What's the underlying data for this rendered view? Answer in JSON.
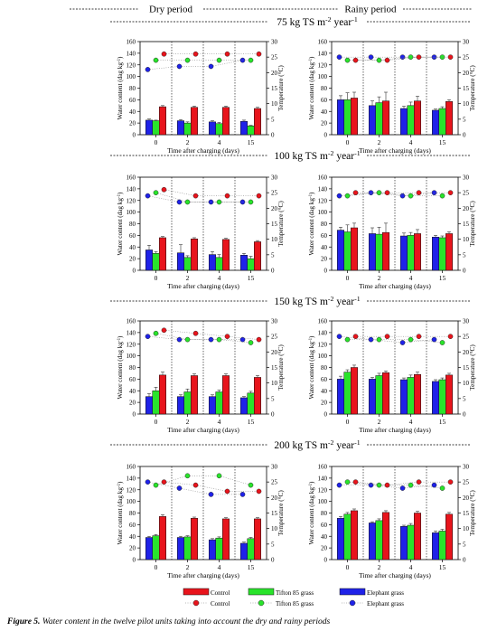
{
  "headers": {
    "dry": "Dry period",
    "rainy": "Rainy period"
  },
  "rows": [
    {
      "title": "75 kg TS m",
      "sup1": "-2",
      "mid": " year",
      "sup2": "-1"
    },
    {
      "title": "100 kg TS m",
      "sup1": "-2",
      "mid": " year",
      "sup2": "-1"
    },
    {
      "title": "150 kg TS m",
      "sup1": "-2",
      "mid": " year",
      "sup2": "-1"
    },
    {
      "title": "200 kg TS m",
      "sup1": "-2",
      "mid": " year",
      "sup2": "-1"
    }
  ],
  "axis_text": {
    "ylabel_left": "Water content (dag kg",
    "ylabel_left_sup": "-1",
    "ylabel_left_end": ")",
    "ylabel_right": "Temperature (°C)",
    "xlabel": "Time after charging (days)"
  },
  "legend": {
    "bars": [
      "Control",
      "Tifton 85 grass",
      "Elephant grass"
    ],
    "points": [
      "Control",
      "Tifton 85 grass",
      "Elephant grass"
    ]
  },
  "caption": {
    "label": "Figure 5.",
    "text": " Water content in the twelve pilot units taking into account the dry and rainy periods"
  },
  "colors": {
    "control": "#e8141c",
    "tifton": "#29e32b",
    "elephant": "#1f22e8"
  },
  "chart_data": [
    {
      "type": "bar",
      "panel": "dry-75",
      "categories": [
        "0",
        "2",
        "4",
        "15"
      ],
      "ylim": [
        0,
        160
      ],
      "y2lim": [
        0,
        30
      ],
      "series": [
        {
          "name": "Elephant grass",
          "values": [
            25,
            24,
            22,
            23
          ]
        },
        {
          "name": "Tifton 85 grass",
          "values": [
            24,
            20,
            19,
            15
          ]
        },
        {
          "name": "Control",
          "values": [
            48,
            47,
            47,
            45
          ]
        }
      ],
      "errors": [
        [
          2,
          2,
          2,
          2
        ],
        [
          1,
          2,
          2,
          1
        ],
        [
          2,
          2,
          2,
          2
        ]
      ],
      "temperature": [
        {
          "name": "Elephant grass",
          "values": [
            21,
            22,
            22,
            24
          ]
        },
        {
          "name": "Tifton 85 grass",
          "values": [
            24,
            24,
            24,
            24
          ]
        },
        {
          "name": "Control",
          "values": [
            26,
            26,
            26,
            26
          ]
        }
      ]
    },
    {
      "type": "bar",
      "panel": "rainy-75",
      "categories": [
        "0",
        "2",
        "4",
        "15"
      ],
      "ylim": [
        0,
        160
      ],
      "y2lim": [
        0,
        30
      ],
      "series": [
        {
          "name": "Elephant grass",
          "values": [
            60,
            50,
            45,
            42
          ]
        },
        {
          "name": "Tifton 85 grass",
          "values": [
            60,
            55,
            50,
            45
          ]
        },
        {
          "name": "Control",
          "values": [
            63,
            58,
            58,
            57
          ]
        }
      ],
      "errors": [
        [
          7,
          8,
          4,
          2
        ],
        [
          12,
          10,
          6,
          3
        ],
        [
          10,
          15,
          8,
          3
        ]
      ],
      "temperature": [
        {
          "name": "Elephant grass",
          "values": [
            25,
            25,
            25,
            25
          ]
        },
        {
          "name": "Tifton 85 grass",
          "values": [
            24,
            24,
            25,
            25
          ]
        },
        {
          "name": "Control",
          "values": [
            24,
            24,
            25,
            25
          ]
        }
      ]
    },
    {
      "type": "bar",
      "panel": "dry-100",
      "categories": [
        "0",
        "2",
        "4",
        "15"
      ],
      "ylim": [
        0,
        160
      ],
      "y2lim": [
        0,
        30
      ],
      "series": [
        {
          "name": "Elephant grass",
          "values": [
            35,
            30,
            27,
            26
          ]
        },
        {
          "name": "Tifton 85 grass",
          "values": [
            29,
            22,
            22,
            20
          ]
        },
        {
          "name": "Control",
          "values": [
            56,
            54,
            53,
            49
          ]
        }
      ],
      "errors": [
        [
          8,
          14,
          5,
          3
        ],
        [
          3,
          3,
          5,
          4
        ],
        [
          2,
          2,
          2,
          2
        ]
      ],
      "temperature": [
        {
          "name": "Elephant grass",
          "values": [
            24,
            22,
            22,
            22
          ]
        },
        {
          "name": "Tifton 85 grass",
          "values": [
            25,
            22,
            22,
            22
          ]
        },
        {
          "name": "Control",
          "values": [
            26,
            24,
            24,
            24
          ]
        }
      ]
    },
    {
      "type": "bar",
      "panel": "rainy-100",
      "categories": [
        "0",
        "2",
        "4",
        "15"
      ],
      "ylim": [
        0,
        160
      ],
      "y2lim": [
        0,
        30
      ],
      "series": [
        {
          "name": "Elephant grass",
          "values": [
            69,
            63,
            59,
            57
          ]
        },
        {
          "name": "Tifton 85 grass",
          "values": [
            66,
            62,
            60,
            56
          ]
        },
        {
          "name": "Control",
          "values": [
            73,
            65,
            63,
            63
          ]
        }
      ],
      "errors": [
        [
          5,
          10,
          5,
          3
        ],
        [
          12,
          12,
          5,
          3
        ],
        [
          8,
          16,
          7,
          3
        ]
      ],
      "temperature": [
        {
          "name": "Elephant grass",
          "values": [
            24,
            25,
            24,
            25
          ]
        },
        {
          "name": "Tifton 85 grass",
          "values": [
            24,
            25,
            24,
            24
          ]
        },
        {
          "name": "Control",
          "values": [
            25,
            25,
            25,
            25
          ]
        }
      ]
    },
    {
      "type": "bar",
      "panel": "dry-150",
      "categories": [
        "0",
        "2",
        "4",
        "15"
      ],
      "ylim": [
        0,
        160
      ],
      "y2lim": [
        0,
        30
      ],
      "series": [
        {
          "name": "Elephant grass",
          "values": [
            30,
            30,
            30,
            28
          ]
        },
        {
          "name": "Tifton 85 grass",
          "values": [
            40,
            38,
            38,
            36
          ]
        },
        {
          "name": "Control",
          "values": [
            67,
            66,
            66,
            63
          ]
        }
      ],
      "errors": [
        [
          5,
          3,
          3,
          2
        ],
        [
          6,
          5,
          3,
          3
        ],
        [
          5,
          3,
          3,
          3
        ]
      ],
      "temperature": [
        {
          "name": "Elephant grass",
          "values": [
            25,
            24,
            24,
            24
          ]
        },
        {
          "name": "Tifton 85 grass",
          "values": [
            26,
            24,
            24,
            23
          ]
        },
        {
          "name": "Control",
          "values": [
            27,
            26,
            25,
            24
          ]
        }
      ]
    },
    {
      "type": "bar",
      "panel": "rainy-150",
      "categories": [
        "0",
        "2",
        "4",
        "15"
      ],
      "ylim": [
        0,
        160
      ],
      "y2lim": [
        0,
        30
      ],
      "series": [
        {
          "name": "Elephant grass",
          "values": [
            60,
            60,
            59,
            56
          ]
        },
        {
          "name": "Tifton 85 grass",
          "values": [
            72,
            66,
            63,
            59
          ]
        },
        {
          "name": "Control",
          "values": [
            80,
            71,
            68,
            67
          ]
        }
      ],
      "errors": [
        [
          5,
          3,
          3,
          3
        ],
        [
          4,
          4,
          4,
          3
        ],
        [
          4,
          3,
          4,
          3
        ]
      ],
      "temperature": [
        {
          "name": "Elephant grass",
          "values": [
            25,
            24,
            23,
            24
          ]
        },
        {
          "name": "Tifton 85 grass",
          "values": [
            24,
            24,
            24,
            23
          ]
        },
        {
          "name": "Control",
          "values": [
            25,
            25,
            25,
            25
          ]
        }
      ]
    },
    {
      "type": "bar",
      "panel": "dry-200",
      "categories": [
        "0",
        "2",
        "4",
        "15"
      ],
      "ylim": [
        0,
        160
      ],
      "y2lim": [
        0,
        30
      ],
      "series": [
        {
          "name": "Elephant grass",
          "values": [
            38,
            38,
            34,
            28
          ]
        },
        {
          "name": "Tifton 85 grass",
          "values": [
            41,
            39,
            37,
            36
          ]
        },
        {
          "name": "Control",
          "values": [
            74,
            71,
            70,
            70
          ]
        }
      ],
      "errors": [
        [
          2,
          2,
          2,
          2
        ],
        [
          2,
          2,
          2,
          2
        ],
        [
          3,
          2,
          2,
          2
        ]
      ],
      "temperature": [
        {
          "name": "Elephant grass",
          "values": [
            25,
            23,
            21,
            21
          ]
        },
        {
          "name": "Tifton 85 grass",
          "values": [
            24,
            27,
            27,
            24
          ]
        },
        {
          "name": "Control",
          "values": [
            25,
            24,
            22,
            22
          ]
        }
      ]
    },
    {
      "type": "bar",
      "panel": "rainy-200",
      "categories": [
        "0",
        "2",
        "4",
        "15"
      ],
      "ylim": [
        0,
        160
      ],
      "y2lim": [
        0,
        30
      ],
      "series": [
        {
          "name": "Elephant grass",
          "values": [
            71,
            63,
            57,
            46
          ]
        },
        {
          "name": "Tifton 85 grass",
          "values": [
            78,
            67,
            59,
            49
          ]
        },
        {
          "name": "Control",
          "values": [
            84,
            81,
            80,
            78
          ]
        }
      ],
      "errors": [
        [
          3,
          2,
          2,
          3
        ],
        [
          3,
          3,
          3,
          3
        ],
        [
          3,
          3,
          3,
          3
        ]
      ],
      "temperature": [
        {
          "name": "Elephant grass",
          "values": [
            24,
            24,
            23,
            24
          ]
        },
        {
          "name": "Tifton 85 grass",
          "values": [
            25,
            24,
            24,
            23
          ]
        },
        {
          "name": "Control",
          "values": [
            25,
            24,
            25,
            25
          ]
        }
      ]
    }
  ]
}
